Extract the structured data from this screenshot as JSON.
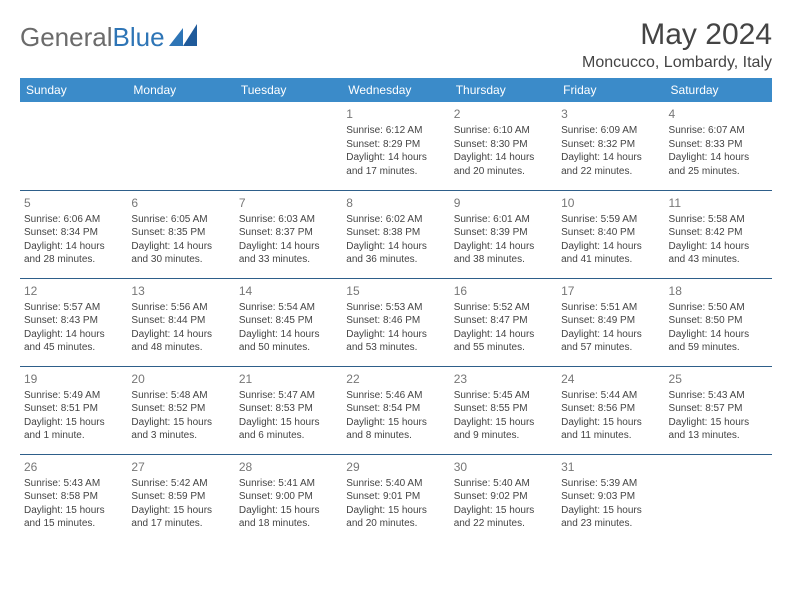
{
  "logo": {
    "textGray": "General",
    "textBlue": "Blue"
  },
  "title": "May 2024",
  "location": "Moncucco, Lombardy, Italy",
  "colors": {
    "headerBg": "#3b8bc9",
    "headerText": "#ffffff",
    "borderColor": "#2e5f8a",
    "bodyText": "#444444",
    "dayNum": "#777777",
    "logoGray": "#6b6b6b",
    "logoBlue": "#2e75b6"
  },
  "dayHeaders": [
    "Sunday",
    "Monday",
    "Tuesday",
    "Wednesday",
    "Thursday",
    "Friday",
    "Saturday"
  ],
  "weeks": [
    [
      null,
      null,
      null,
      {
        "n": "1",
        "sr": "6:12 AM",
        "ss": "8:29 PM",
        "dl": "14 hours and 17 minutes."
      },
      {
        "n": "2",
        "sr": "6:10 AM",
        "ss": "8:30 PM",
        "dl": "14 hours and 20 minutes."
      },
      {
        "n": "3",
        "sr": "6:09 AM",
        "ss": "8:32 PM",
        "dl": "14 hours and 22 minutes."
      },
      {
        "n": "4",
        "sr": "6:07 AM",
        "ss": "8:33 PM",
        "dl": "14 hours and 25 minutes."
      }
    ],
    [
      {
        "n": "5",
        "sr": "6:06 AM",
        "ss": "8:34 PM",
        "dl": "14 hours and 28 minutes."
      },
      {
        "n": "6",
        "sr": "6:05 AM",
        "ss": "8:35 PM",
        "dl": "14 hours and 30 minutes."
      },
      {
        "n": "7",
        "sr": "6:03 AM",
        "ss": "8:37 PM",
        "dl": "14 hours and 33 minutes."
      },
      {
        "n": "8",
        "sr": "6:02 AM",
        "ss": "8:38 PM",
        "dl": "14 hours and 36 minutes."
      },
      {
        "n": "9",
        "sr": "6:01 AM",
        "ss": "8:39 PM",
        "dl": "14 hours and 38 minutes."
      },
      {
        "n": "10",
        "sr": "5:59 AM",
        "ss": "8:40 PM",
        "dl": "14 hours and 41 minutes."
      },
      {
        "n": "11",
        "sr": "5:58 AM",
        "ss": "8:42 PM",
        "dl": "14 hours and 43 minutes."
      }
    ],
    [
      {
        "n": "12",
        "sr": "5:57 AM",
        "ss": "8:43 PM",
        "dl": "14 hours and 45 minutes."
      },
      {
        "n": "13",
        "sr": "5:56 AM",
        "ss": "8:44 PM",
        "dl": "14 hours and 48 minutes."
      },
      {
        "n": "14",
        "sr": "5:54 AM",
        "ss": "8:45 PM",
        "dl": "14 hours and 50 minutes."
      },
      {
        "n": "15",
        "sr": "5:53 AM",
        "ss": "8:46 PM",
        "dl": "14 hours and 53 minutes."
      },
      {
        "n": "16",
        "sr": "5:52 AM",
        "ss": "8:47 PM",
        "dl": "14 hours and 55 minutes."
      },
      {
        "n": "17",
        "sr": "5:51 AM",
        "ss": "8:49 PM",
        "dl": "14 hours and 57 minutes."
      },
      {
        "n": "18",
        "sr": "5:50 AM",
        "ss": "8:50 PM",
        "dl": "14 hours and 59 minutes."
      }
    ],
    [
      {
        "n": "19",
        "sr": "5:49 AM",
        "ss": "8:51 PM",
        "dl": "15 hours and 1 minute."
      },
      {
        "n": "20",
        "sr": "5:48 AM",
        "ss": "8:52 PM",
        "dl": "15 hours and 3 minutes."
      },
      {
        "n": "21",
        "sr": "5:47 AM",
        "ss": "8:53 PM",
        "dl": "15 hours and 6 minutes."
      },
      {
        "n": "22",
        "sr": "5:46 AM",
        "ss": "8:54 PM",
        "dl": "15 hours and 8 minutes."
      },
      {
        "n": "23",
        "sr": "5:45 AM",
        "ss": "8:55 PM",
        "dl": "15 hours and 9 minutes."
      },
      {
        "n": "24",
        "sr": "5:44 AM",
        "ss": "8:56 PM",
        "dl": "15 hours and 11 minutes."
      },
      {
        "n": "25",
        "sr": "5:43 AM",
        "ss": "8:57 PM",
        "dl": "15 hours and 13 minutes."
      }
    ],
    [
      {
        "n": "26",
        "sr": "5:43 AM",
        "ss": "8:58 PM",
        "dl": "15 hours and 15 minutes."
      },
      {
        "n": "27",
        "sr": "5:42 AM",
        "ss": "8:59 PM",
        "dl": "15 hours and 17 minutes."
      },
      {
        "n": "28",
        "sr": "5:41 AM",
        "ss": "9:00 PM",
        "dl": "15 hours and 18 minutes."
      },
      {
        "n": "29",
        "sr": "5:40 AM",
        "ss": "9:01 PM",
        "dl": "15 hours and 20 minutes."
      },
      {
        "n": "30",
        "sr": "5:40 AM",
        "ss": "9:02 PM",
        "dl": "15 hours and 22 minutes."
      },
      {
        "n": "31",
        "sr": "5:39 AM",
        "ss": "9:03 PM",
        "dl": "15 hours and 23 minutes."
      },
      null
    ]
  ],
  "labels": {
    "sunrise": "Sunrise: ",
    "sunset": "Sunset: ",
    "daylight": "Daylight: "
  }
}
